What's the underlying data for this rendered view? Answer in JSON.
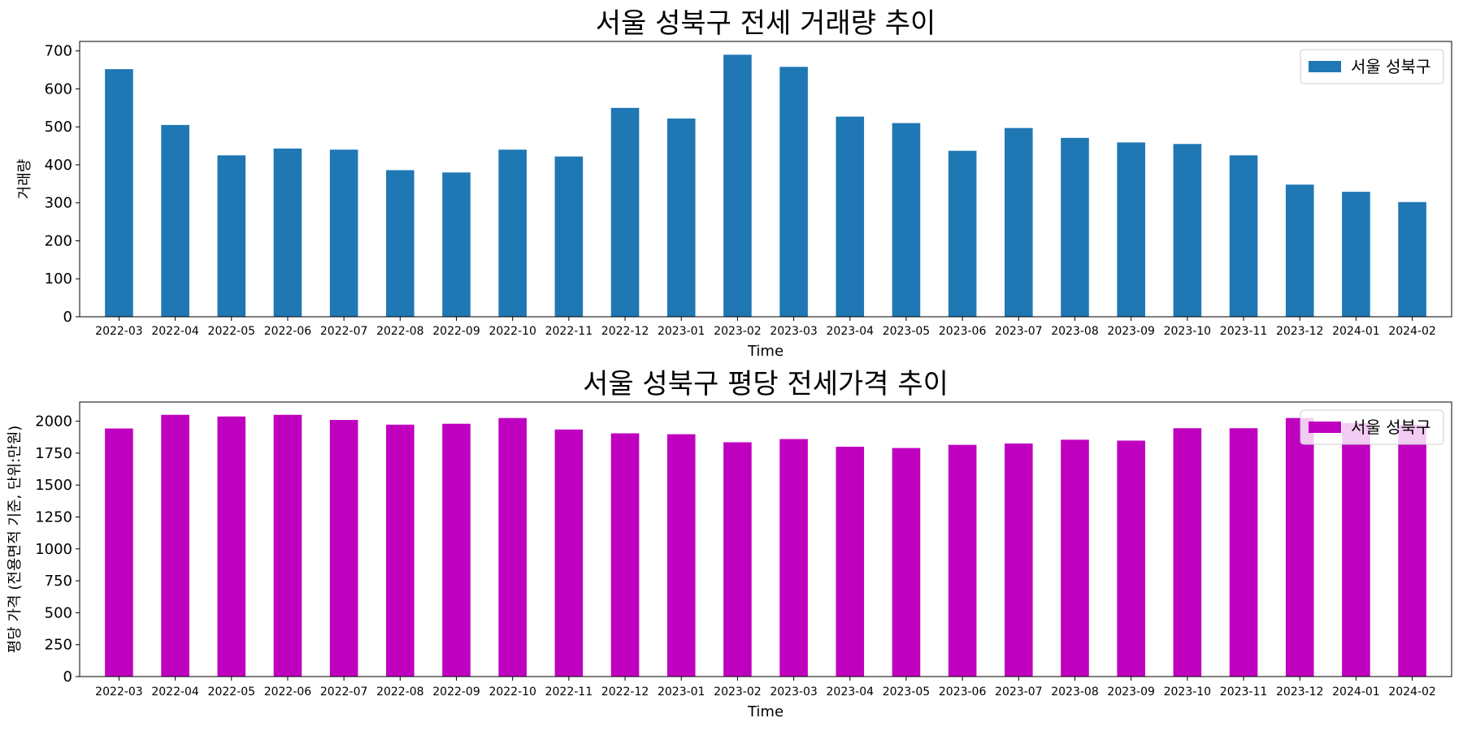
{
  "chart_data": [
    {
      "type": "bar",
      "title": "서울 성북구 전세 거래량 추이",
      "xlabel": "Time",
      "ylabel": "거래량",
      "ylim": [
        0,
        725
      ],
      "yticks": [
        0,
        100,
        200,
        300,
        400,
        500,
        600,
        700
      ],
      "legend_position": "top-right",
      "grid": false,
      "categories": [
        "2022-03",
        "2022-04",
        "2022-05",
        "2022-06",
        "2022-07",
        "2022-08",
        "2022-09",
        "2022-10",
        "2022-11",
        "2022-12",
        "2023-01",
        "2023-02",
        "2023-03",
        "2023-04",
        "2023-05",
        "2023-06",
        "2023-07",
        "2023-08",
        "2023-09",
        "2023-10",
        "2023-11",
        "2023-12",
        "2024-01",
        "2024-02"
      ],
      "series": [
        {
          "name": "서울 성북구",
          "color": "#1f77b4",
          "values": [
            652,
            505,
            425,
            443,
            440,
            386,
            380,
            440,
            422,
            550,
            522,
            690,
            658,
            527,
            510,
            437,
            497,
            471,
            459,
            455,
            425,
            348,
            329,
            302
          ]
        }
      ]
    },
    {
      "type": "bar",
      "title": "서울 성북구 평당 전세가격 추이",
      "xlabel": "Time",
      "ylabel": "평당 가격 (전용면적 기준, 단위:만원)",
      "ylim": [
        0,
        2150
      ],
      "yticks": [
        0,
        250,
        500,
        750,
        1000,
        1250,
        1500,
        1750,
        2000
      ],
      "legend_position": "top-right",
      "grid": false,
      "categories": [
        "2022-03",
        "2022-04",
        "2022-05",
        "2022-06",
        "2022-07",
        "2022-08",
        "2022-09",
        "2022-10",
        "2022-11",
        "2022-12",
        "2023-01",
        "2023-02",
        "2023-03",
        "2023-04",
        "2023-05",
        "2023-06",
        "2023-07",
        "2023-08",
        "2023-09",
        "2023-10",
        "2023-11",
        "2023-12",
        "2024-01",
        "2024-02"
      ],
      "series": [
        {
          "name": "서울 성북구",
          "color": "#bf00bf",
          "values": [
            1943,
            2050,
            2037,
            2050,
            2010,
            1973,
            1980,
            2025,
            1935,
            1905,
            1898,
            1835,
            1860,
            1800,
            1790,
            1815,
            1825,
            1855,
            1848,
            1945,
            1945,
            2025,
            1985,
            1970
          ]
        }
      ]
    }
  ]
}
